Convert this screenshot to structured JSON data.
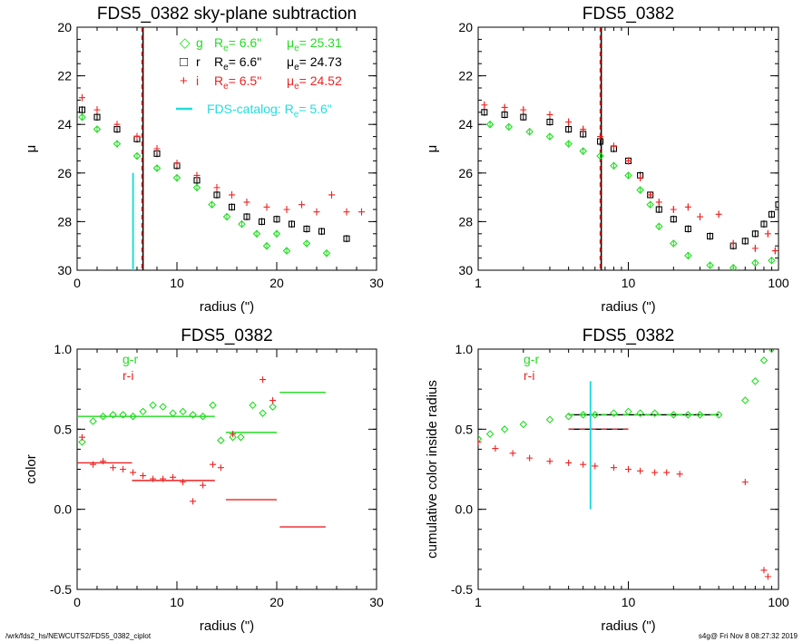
{
  "colors": {
    "g": "#22dd22",
    "r": "#000000",
    "i": "#ee2222",
    "cyan": "#22dddd",
    "axis": "#000000",
    "fit_g": "#22dd22",
    "fit_r": "#ee2222"
  },
  "footer": {
    "left": "/wrk/fds2_hs/NEWCUTS2/FDS5_0382_ciplot",
    "right": "s4g@  Fri Nov  8 08:27:32 2019"
  },
  "chart_data": [
    {
      "type": "scatter",
      "title": "FDS5_0382 sky-plane subtraction",
      "xlabel": "radius (\")",
      "ylabel": "μ",
      "xlim": [
        0,
        30
      ],
      "ylim": [
        30,
        20
      ],
      "xticks": [
        "0",
        "10",
        "20",
        "30"
      ],
      "yticks": [
        "20",
        "22",
        "24",
        "26",
        "28",
        "30"
      ],
      "legend": {
        "placement": "top-right",
        "entries": [
          {
            "symbol": "◇",
            "band": "g",
            "re_label": "R",
            "re_sub": "e",
            "re_value": "=  6.6\"",
            "mu_label": "μ",
            "mu_sub": "e",
            "mu_value": "= 25.31",
            "color": "#22dd22"
          },
          {
            "symbol": "□",
            "band": "r",
            "re_label": "R",
            "re_sub": "e",
            "re_value": "=  6.6\"",
            "mu_label": "μ",
            "mu_sub": "e",
            "mu_value": "= 24.73",
            "color": "#000000"
          },
          {
            "symbol": "+",
            "band": "i",
            "re_label": "R",
            "re_sub": "e",
            "re_value": "=  6.5\"",
            "mu_label": "μ",
            "mu_sub": "e",
            "mu_value": "= 24.52",
            "color": "#ee2222"
          }
        ],
        "catalog_text": "FDS-catalog: R",
        "catalog_sub": "e",
        "catalog_value": "=   5.6\""
      },
      "vlines": [
        {
          "x": 6.6,
          "color": "#22dd22",
          "style": "dashed"
        },
        {
          "x": 6.6,
          "color": "#000000",
          "style": "solid"
        },
        {
          "x": 6.5,
          "color": "#ee2222",
          "style": "dashed"
        }
      ],
      "catalog_line": {
        "x": 5.6,
        "y_from": 30,
        "y_to": 26
      },
      "series": [
        {
          "name": "g",
          "color": "#22dd22",
          "marker": "diamond",
          "points": [
            [
              0.5,
              23.7
            ],
            [
              2,
              24.2
            ],
            [
              4,
              24.8
            ],
            [
              6,
              25.3
            ],
            [
              8,
              25.8
            ],
            [
              10,
              26.2
            ],
            [
              12,
              26.6
            ],
            [
              13.5,
              27.3
            ],
            [
              15,
              27.8
            ],
            [
              16.5,
              28.1
            ],
            [
              18,
              28.5
            ],
            [
              19,
              29.0
            ],
            [
              20,
              28.5
            ],
            [
              21,
              29.2
            ],
            [
              23,
              28.9
            ],
            [
              25,
              29.3
            ]
          ]
        },
        {
          "name": "r",
          "color": "#000000",
          "marker": "square",
          "points": [
            [
              0.5,
              23.4
            ],
            [
              2,
              23.7
            ],
            [
              4,
              24.2
            ],
            [
              6,
              24.6
            ],
            [
              8,
              25.2
            ],
            [
              10,
              25.7
            ],
            [
              12,
              26.3
            ],
            [
              14,
              26.9
            ],
            [
              15.5,
              27.4
            ],
            [
              17,
              27.8
            ],
            [
              18.5,
              28.0
            ],
            [
              20,
              27.9
            ],
            [
              21.5,
              28.1
            ],
            [
              23,
              28.3
            ],
            [
              24.5,
              28.4
            ],
            [
              27,
              28.7
            ]
          ]
        },
        {
          "name": "i",
          "color": "#ee2222",
          "marker": "plus",
          "points": [
            [
              0.5,
              22.9
            ],
            [
              2,
              23.4
            ],
            [
              4,
              24.0
            ],
            [
              6,
              24.5
            ],
            [
              8,
              25.0
            ],
            [
              10,
              25.6
            ],
            [
              12,
              26.1
            ],
            [
              14,
              26.6
            ],
            [
              15.5,
              26.9
            ],
            [
              17,
              27.2
            ],
            [
              19,
              27.4
            ],
            [
              21,
              27.5
            ],
            [
              22.5,
              27.3
            ],
            [
              24,
              27.6
            ],
            [
              25.5,
              26.9
            ],
            [
              27,
              27.6
            ],
            [
              28.5,
              27.6
            ]
          ]
        }
      ]
    },
    {
      "type": "scatter",
      "title": "FDS5_0382",
      "xlabel": "radius (\")",
      "ylabel": "μ",
      "xscale": "log",
      "xlim": [
        1,
        100
      ],
      "ylim": [
        30,
        20
      ],
      "xticks": [
        "1",
        "10",
        "100"
      ],
      "yticks": [
        "20",
        "22",
        "24",
        "26",
        "28",
        "30"
      ],
      "vlines": [
        {
          "x": 6.6,
          "color": "#22dd22",
          "style": "dashed"
        },
        {
          "x": 6.6,
          "color": "#000000",
          "style": "solid"
        },
        {
          "x": 6.5,
          "color": "#ee2222",
          "style": "dashed"
        }
      ],
      "series": [
        {
          "name": "g",
          "color": "#22dd22",
          "marker": "diamond",
          "points": [
            [
              1.2,
              24.0
            ],
            [
              1.6,
              24.1
            ],
            [
              2.2,
              24.3
            ],
            [
              3,
              24.5
            ],
            [
              4,
              24.8
            ],
            [
              5,
              25.1
            ],
            [
              6.5,
              25.3
            ],
            [
              8,
              25.7
            ],
            [
              10,
              26.1
            ],
            [
              12,
              26.7
            ],
            [
              14,
              27.3
            ],
            [
              16,
              28.2
            ],
            [
              20,
              28.9
            ],
            [
              25,
              29.4
            ],
            [
              35,
              29.8
            ],
            [
              50,
              29.9
            ],
            [
              70,
              29.7
            ],
            [
              90,
              29.6
            ]
          ]
        },
        {
          "name": "r",
          "color": "#000000",
          "marker": "square",
          "points": [
            [
              1.1,
              23.5
            ],
            [
              1.5,
              23.6
            ],
            [
              2,
              23.7
            ],
            [
              3,
              23.9
            ],
            [
              4,
              24.2
            ],
            [
              5,
              24.4
            ],
            [
              6.5,
              24.7
            ],
            [
              8,
              25.0
            ],
            [
              10,
              25.5
            ],
            [
              12,
              26.1
            ],
            [
              14,
              26.9
            ],
            [
              16,
              27.5
            ],
            [
              20,
              27.9
            ],
            [
              25,
              28.3
            ],
            [
              35,
              28.6
            ],
            [
              50,
              29.0
            ],
            [
              60,
              28.8
            ],
            [
              70,
              28.5
            ],
            [
              80,
              28.1
            ],
            [
              90,
              27.7
            ],
            [
              100,
              27.3
            ]
          ]
        },
        {
          "name": "i",
          "color": "#ee2222",
          "marker": "plus",
          "points": [
            [
              1.1,
              23.2
            ],
            [
              1.5,
              23.3
            ],
            [
              2,
              23.4
            ],
            [
              3,
              23.6
            ],
            [
              4,
              23.9
            ],
            [
              5,
              24.2
            ],
            [
              6.5,
              24.5
            ],
            [
              8,
              24.9
            ],
            [
              10,
              25.5
            ],
            [
              12,
              26.2
            ],
            [
              14,
              26.9
            ],
            [
              16,
              27.2
            ],
            [
              20,
              27.5
            ],
            [
              25,
              27.4
            ],
            [
              30,
              27.8
            ],
            [
              40,
              27.7
            ],
            [
              50,
              28.9
            ],
            [
              70,
              29.1
            ],
            [
              85,
              28.5
            ],
            [
              95,
              29.2
            ]
          ]
        }
      ]
    },
    {
      "type": "scatter",
      "title": "FDS5_0382",
      "xlabel": "radius (\")",
      "ylabel": "color",
      "xlim": [
        0,
        30
      ],
      "ylim": [
        -0.5,
        1.0
      ],
      "xticks": [
        "0",
        "10",
        "20",
        "30"
      ],
      "yticks": [
        "-0.5",
        "0.0",
        "0.5",
        "1.0"
      ],
      "legend": {
        "placement": "top-left",
        "entries": [
          {
            "label": "g-r",
            "color": "#22dd22"
          },
          {
            "label": "r-i",
            "color": "#ee2222"
          }
        ]
      },
      "series": [
        {
          "name": "g-r",
          "color": "#22dd22",
          "marker": "diamond",
          "points": [
            [
              0.5,
              0.42
            ],
            [
              1.6,
              0.55
            ],
            [
              2.6,
              0.58
            ],
            [
              3.6,
              0.59
            ],
            [
              4.6,
              0.59
            ],
            [
              5.6,
              0.58
            ],
            [
              6.6,
              0.61
            ],
            [
              7.6,
              0.65
            ],
            [
              8.6,
              0.64
            ],
            [
              9.6,
              0.6
            ],
            [
              10.6,
              0.61
            ],
            [
              11.6,
              0.59
            ],
            [
              12.6,
              0.58
            ],
            [
              13.6,
              0.65
            ],
            [
              14.4,
              0.43
            ],
            [
              15.6,
              0.45
            ],
            [
              16.4,
              0.45
            ],
            [
              17.6,
              0.65
            ],
            [
              18.6,
              0.6
            ],
            [
              19.6,
              0.64
            ]
          ]
        },
        {
          "name": "r-i",
          "color": "#ee2222",
          "marker": "plus",
          "points": [
            [
              0.5,
              0.45
            ],
            [
              1.6,
              0.28
            ],
            [
              2.6,
              0.3
            ],
            [
              3.6,
              0.26
            ],
            [
              4.6,
              0.25
            ],
            [
              5.6,
              0.23
            ],
            [
              6.6,
              0.21
            ],
            [
              7.6,
              0.19
            ],
            [
              8.6,
              0.19
            ],
            [
              9.6,
              0.2
            ],
            [
              10.6,
              0.17
            ],
            [
              11.6,
              0.05
            ],
            [
              12.6,
              0.15
            ],
            [
              13.6,
              0.28
            ],
            [
              14.4,
              0.26
            ],
            [
              15.6,
              0.47
            ],
            [
              18.6,
              0.81
            ],
            [
              19.6,
              0.68
            ]
          ]
        }
      ],
      "segments": [
        {
          "color": "#22dd22",
          "x": [
            0,
            13.8
          ],
          "y": 0.58
        },
        {
          "color": "#22dd22",
          "x": [
            14.9,
            20.0
          ],
          "y": 0.48
        },
        {
          "color": "#22dd22",
          "x": [
            20.3,
            24.9
          ],
          "y": 0.73
        },
        {
          "color": "#ee2222",
          "x": [
            0,
            5.5
          ],
          "y": 0.29
        },
        {
          "color": "#ee2222",
          "x": [
            5.5,
            13.8
          ],
          "y": 0.18
        },
        {
          "color": "#ee2222",
          "x": [
            14.9,
            20.0
          ],
          "y": 0.06
        },
        {
          "color": "#ee2222",
          "x": [
            20.3,
            24.9
          ],
          "y": -0.11
        }
      ]
    },
    {
      "type": "scatter",
      "title": "FDS5_0382",
      "xlabel": "radius (\")",
      "ylabel": "cumulative color inside radius",
      "xscale": "log",
      "xlim": [
        1,
        100
      ],
      "ylim": [
        -0.5,
        1.0
      ],
      "xticks": [
        "1",
        "10",
        "100"
      ],
      "yticks": [
        "-0.5",
        "0.0",
        "0.5",
        "1.0"
      ],
      "legend": {
        "placement": "top-left",
        "entries": [
          {
            "label": "g-r",
            "color": "#22dd22"
          },
          {
            "label": "r-i",
            "color": "#ee2222"
          }
        ]
      },
      "catalog_line": {
        "x": 5.6,
        "y_from": 0.0,
        "y_to": 0.8
      },
      "series": [
        {
          "name": "g-r",
          "color": "#22dd22",
          "marker": "diamond",
          "points": [
            [
              1.0,
              0.44
            ],
            [
              1.2,
              0.47
            ],
            [
              1.5,
              0.5
            ],
            [
              2,
              0.53
            ],
            [
              3,
              0.56
            ],
            [
              4,
              0.58
            ],
            [
              5,
              0.59
            ],
            [
              6,
              0.59
            ],
            [
              8,
              0.6
            ],
            [
              10,
              0.61
            ],
            [
              12,
              0.6
            ],
            [
              15,
              0.6
            ],
            [
              20,
              0.59
            ],
            [
              25,
              0.59
            ],
            [
              30,
              0.59
            ],
            [
              40,
              0.59
            ],
            [
              60,
              0.68
            ],
            [
              70,
              0.8
            ],
            [
              80,
              0.93
            ],
            [
              90,
              1.0
            ]
          ]
        },
        {
          "name": "r-i",
          "color": "#ee2222",
          "marker": "plus",
          "points": [
            [
              1.0,
              0.42
            ],
            [
              1.3,
              0.38
            ],
            [
              1.7,
              0.35
            ],
            [
              2.2,
              0.32
            ],
            [
              3,
              0.3
            ],
            [
              4,
              0.29
            ],
            [
              5,
              0.28
            ],
            [
              6,
              0.27
            ],
            [
              8,
              0.26
            ],
            [
              10,
              0.25
            ],
            [
              12,
              0.24
            ],
            [
              15,
              0.23
            ],
            [
              18,
              0.23
            ],
            [
              22,
              0.22
            ],
            [
              60,
              0.17
            ],
            [
              80,
              -0.38
            ],
            [
              85,
              -0.42
            ]
          ]
        }
      ],
      "segments": [
        {
          "color": "#000000",
          "dashed_color": "#22dd22",
          "x": [
            4.0,
            40
          ],
          "y": 0.59
        },
        {
          "color": "#000000",
          "dashed_color": "#ee2222",
          "x": [
            4.0,
            10
          ],
          "y": 0.5
        }
      ]
    }
  ]
}
